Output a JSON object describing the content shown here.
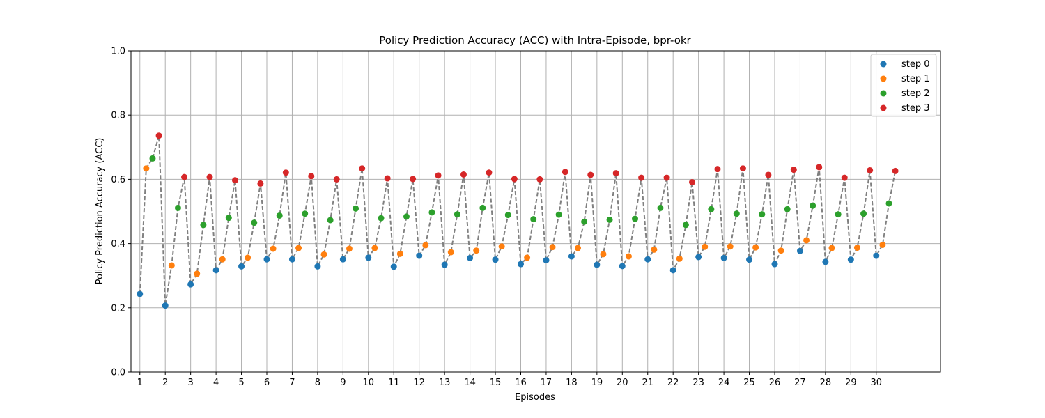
{
  "chart_data": {
    "type": "scatter",
    "title": "Policy Prediction Accuracy (ACC) with Intra-Episode, bpr-okr",
    "xlabel": "Episodes",
    "ylabel": "Policy Prediction Accuracy (ACC)",
    "ylim": [
      0.0,
      1.0
    ],
    "yticks": [
      "0.0",
      "0.2",
      "0.4",
      "0.6",
      "0.8",
      "1.0"
    ],
    "categories": [
      "1",
      "2",
      "3",
      "4",
      "5",
      "6",
      "7",
      "8",
      "9",
      "10",
      "11",
      "12",
      "13",
      "14",
      "15",
      "16",
      "17",
      "18",
      "19",
      "20",
      "21",
      "22",
      "23",
      "24",
      "25",
      "26",
      "27",
      "28",
      "29",
      "30"
    ],
    "step_offset": 0.25,
    "grid": true,
    "legend_position": "top-right",
    "connector": {
      "style": "dashed",
      "color": "#808080"
    },
    "series": [
      {
        "name": "step 0",
        "color": "#1f77b4",
        "values": [
          0.243,
          0.207,
          0.273,
          0.317,
          0.329,
          0.351,
          0.351,
          0.329,
          0.351,
          0.356,
          0.328,
          0.362,
          0.334,
          0.355,
          0.35,
          0.336,
          0.348,
          0.36,
          0.334,
          0.33,
          0.351,
          0.317,
          0.358,
          0.355,
          0.35,
          0.336,
          0.377,
          0.343,
          0.35,
          0.362
        ]
      },
      {
        "name": "step 1",
        "color": "#ff7f0e",
        "values": [
          0.634,
          0.332,
          0.306,
          0.351,
          0.356,
          0.384,
          0.386,
          0.366,
          0.384,
          0.386,
          0.368,
          0.395,
          0.373,
          0.378,
          0.391,
          0.356,
          0.389,
          0.386,
          0.367,
          0.36,
          0.381,
          0.353,
          0.39,
          0.391,
          0.388,
          0.378,
          0.41,
          0.386,
          0.387,
          0.396
        ]
      },
      {
        "name": "step 2",
        "color": "#2ca02c",
        "values": [
          0.665,
          0.511,
          0.458,
          0.48,
          0.465,
          0.487,
          0.493,
          0.473,
          0.509,
          0.479,
          0.484,
          0.497,
          0.491,
          0.511,
          0.489,
          0.476,
          0.49,
          0.468,
          0.474,
          0.477,
          0.511,
          0.458,
          0.507,
          0.493,
          0.491,
          0.507,
          0.518,
          0.491,
          0.493,
          0.525
        ]
      },
      {
        "name": "step 3",
        "color": "#d62728",
        "values": [
          0.736,
          0.607,
          0.607,
          0.597,
          0.587,
          0.621,
          0.61,
          0.6,
          0.634,
          0.603,
          0.601,
          0.612,
          0.615,
          0.621,
          0.601,
          0.6,
          0.623,
          0.614,
          0.619,
          0.605,
          0.605,
          0.591,
          0.632,
          0.634,
          0.614,
          0.63,
          0.638,
          0.605,
          0.628,
          0.626
        ]
      }
    ]
  }
}
